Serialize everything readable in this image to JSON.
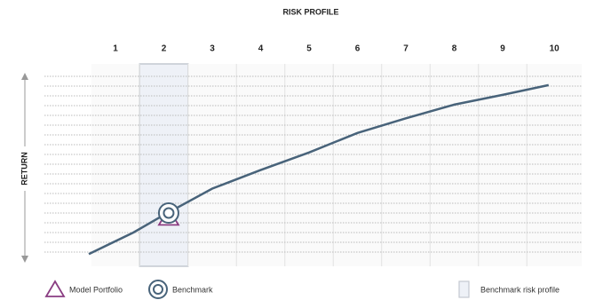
{
  "chart_data": {
    "type": "line",
    "title": "RISK PROFILE",
    "y_label": "RETURN",
    "categories": [
      "1",
      "2",
      "3",
      "4",
      "5",
      "6",
      "7",
      "8",
      "9",
      "10"
    ],
    "x": [
      0.45,
      1.37,
      2.0,
      3.0,
      4.0,
      5.0,
      6.0,
      7.0,
      8.0,
      9.0,
      9.95
    ],
    "values": [
      0.8,
      3.0,
      4.8,
      7.5,
      9.4,
      11.2,
      13.2,
      14.7,
      16.1,
      17.1,
      18.1
    ],
    "color": "#48637a",
    "xlim": [
      0.45,
      11.55
    ],
    "ylim": [
      0,
      20
    ],
    "yticks": [
      1,
      2,
      3,
      4,
      5,
      6,
      7,
      8,
      9,
      10,
      11,
      12,
      13,
      14,
      15,
      16,
      17,
      18,
      19
    ],
    "grid": true,
    "markers": [
      {
        "name": "Model Portfolio",
        "shape": "triangle",
        "color": "#8a3d82",
        "x": 2.1,
        "y": 4.6
      },
      {
        "name": "Benchmark",
        "shape": "circle",
        "color": "#48637a",
        "x": 2.1,
        "y": 5.0
      }
    ],
    "highlight": {
      "name": "Benchmark risk profile",
      "category": "2",
      "color": "#eef1f7"
    }
  }
}
